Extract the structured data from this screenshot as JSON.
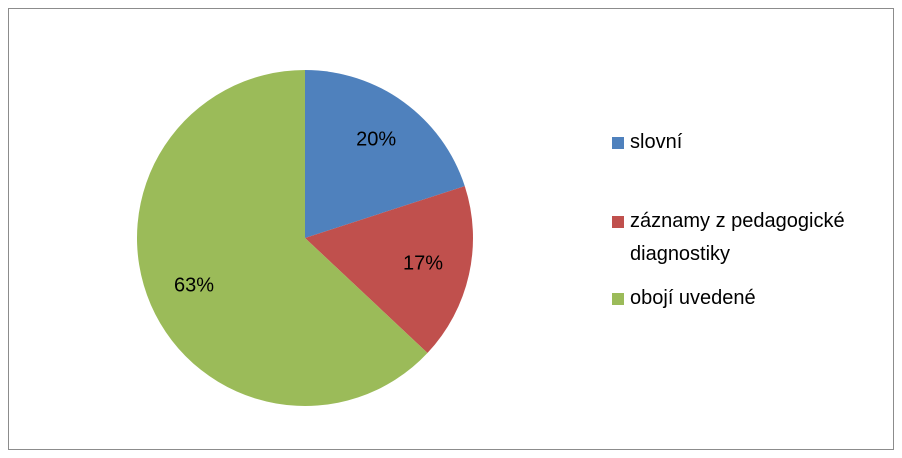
{
  "chart_data": {
    "type": "pie",
    "categories": [
      "slovní",
      "záznamy z pedagogické diagnostiky",
      "obojí uvedené"
    ],
    "values": [
      20,
      17,
      63
    ],
    "value_labels": [
      "20%",
      "17%",
      "63%"
    ],
    "colors": [
      "#4f81bd",
      "#c0504d",
      "#9bbb59"
    ],
    "legend": "right"
  }
}
